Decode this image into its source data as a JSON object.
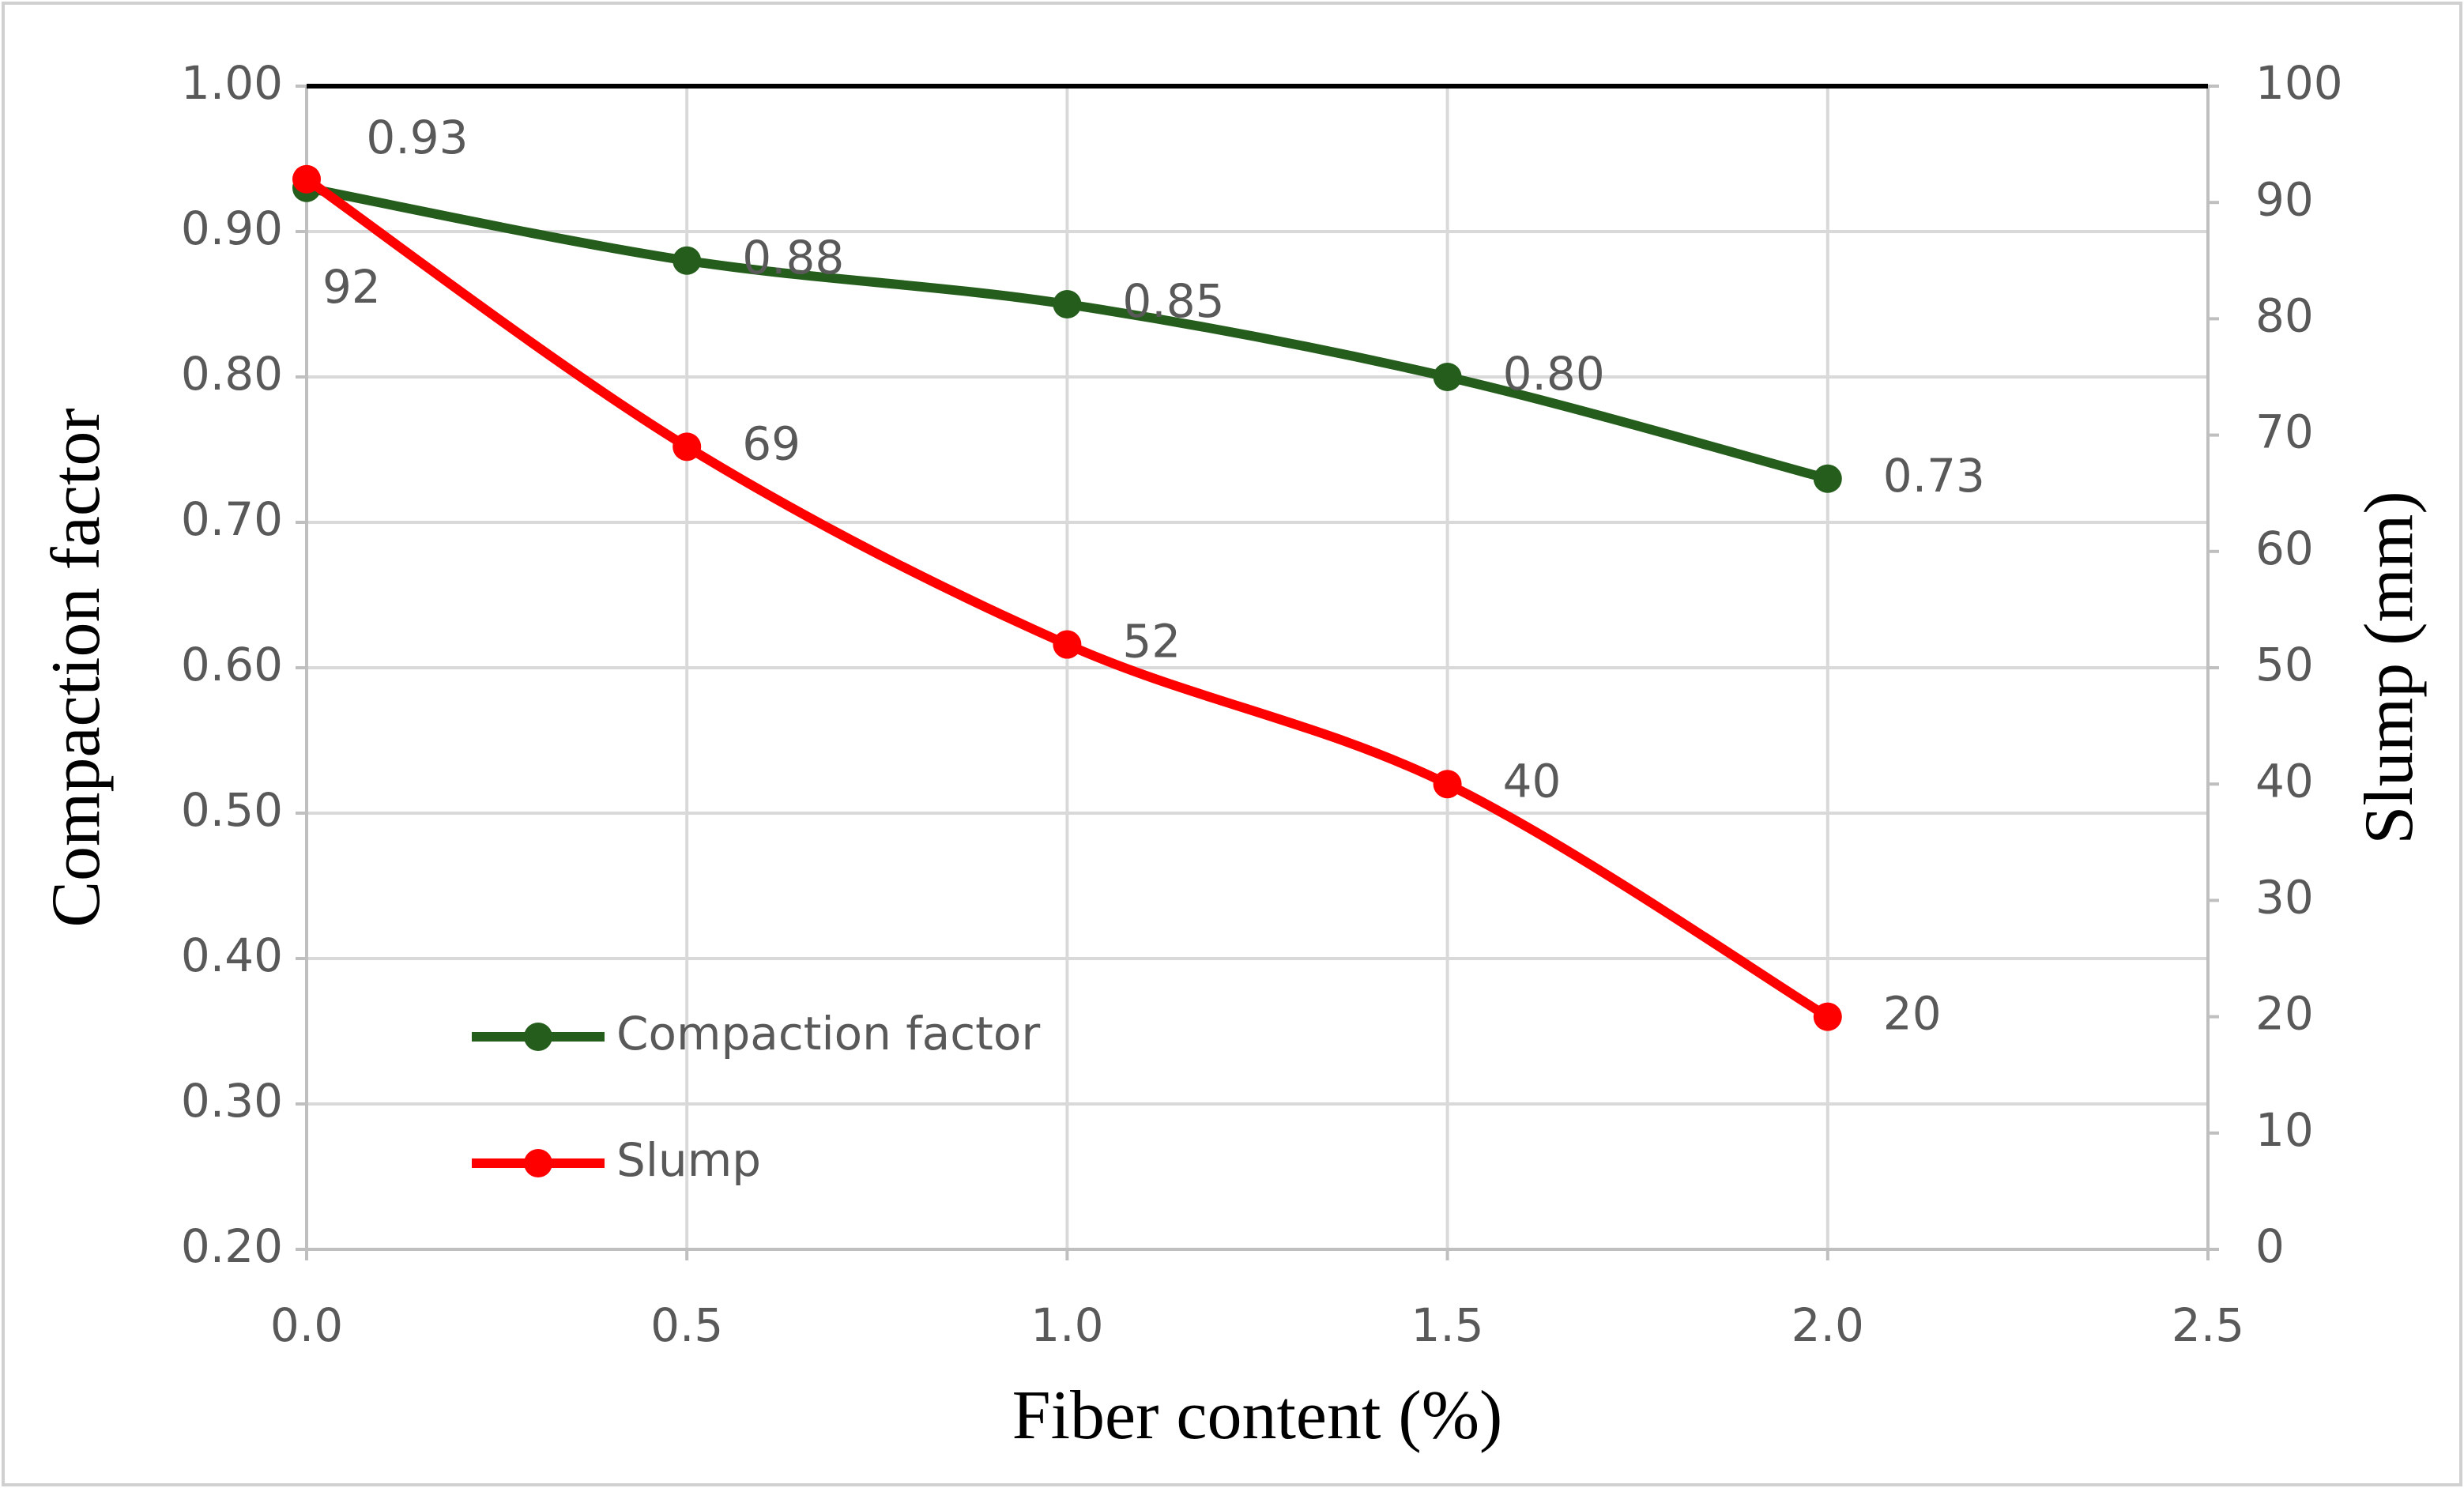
{
  "chart_data": {
    "type": "line",
    "x_label": "Fiber content (%)",
    "y_label": "Compaction factor",
    "y2_label": "Slump (mm)",
    "x": [
      0,
      0.5,
      1,
      1.5,
      2
    ],
    "series": [
      {
        "name": "Compaction factor",
        "color": "#255e1c",
        "values": [
          0.93,
          0.88,
          0.85,
          0.8,
          0.73
        ],
        "value_labels": [
          "0.93",
          "0.88",
          "0.85",
          "0.80",
          "0.73"
        ]
      },
      {
        "name": "Slump",
        "color": "#ff0000",
        "axis": "y2",
        "values": [
          92,
          69,
          52,
          40,
          20
        ]
      }
    ],
    "xlim": [
      0,
      2.5
    ],
    "xticks": [
      {
        "value": 0,
        "label": "0.0"
      },
      {
        "value": 0.5,
        "label": "0.5"
      },
      {
        "value": 1,
        "label": "1.0"
      },
      {
        "value": 1.5,
        "label": "1.5"
      },
      {
        "value": 2,
        "label": "2.0"
      },
      {
        "value": 2.5,
        "label": "2.5"
      }
    ],
    "ylim": [
      0.2,
      1
    ],
    "yticks": [
      {
        "value": 0.2,
        "label": "0.20"
      },
      {
        "value": 0.3,
        "label": "0.30"
      },
      {
        "value": 0.4,
        "label": "0.40"
      },
      {
        "value": 0.5,
        "label": "0.50"
      },
      {
        "value": 0.6,
        "label": "0.60"
      },
      {
        "value": 0.7,
        "label": "0.70"
      },
      {
        "value": 0.8,
        "label": "0.80"
      },
      {
        "value": 0.9,
        "label": "0.90"
      },
      {
        "value": 1,
        "label": "1.00"
      }
    ],
    "y2lim": [
      0,
      100
    ],
    "y2ticks": [
      0,
      10,
      20,
      30,
      40,
      50,
      60,
      70,
      80,
      90,
      100
    ],
    "grid": true,
    "legend": "lower left"
  }
}
